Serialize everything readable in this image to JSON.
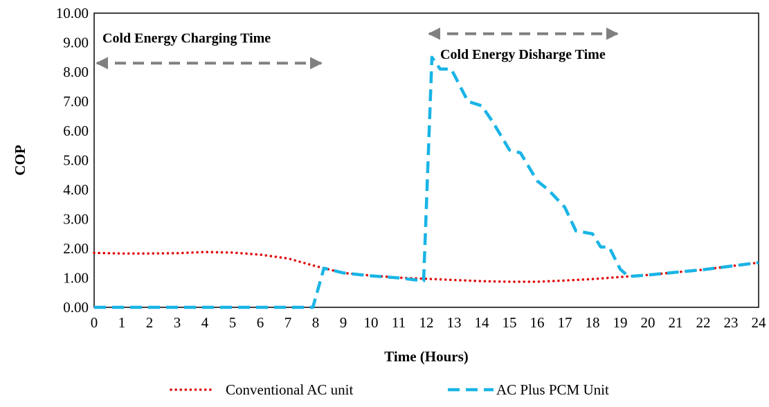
{
  "chart_data": {
    "type": "line",
    "xlabel": "Time (Hours)",
    "ylabel": "COP",
    "xlim": [
      0,
      24
    ],
    "ylim": [
      0,
      10
    ],
    "x_ticks": [
      "0",
      "1",
      "2",
      "3",
      "4",
      "5",
      "6",
      "7",
      "8",
      "9",
      "10",
      "11",
      "12",
      "13",
      "14",
      "15",
      "16",
      "17",
      "18",
      "19",
      "20",
      "21",
      "22",
      "23",
      "24"
    ],
    "y_ticks": [
      "0.00",
      "1.00",
      "2.00",
      "3.00",
      "4.00",
      "5.00",
      "6.00",
      "7.00",
      "8.00",
      "9.00",
      "10.00"
    ],
    "grid": false,
    "legend_position": "bottom",
    "annotations": [
      {
        "text": "Cold Energy Charging Time",
        "arrow_from_x": 0,
        "arrow_to_x": 8.3,
        "arrow_y": 8.3,
        "text_x": 0.3,
        "text_y": 9.0
      },
      {
        "text": "Cold Energy Disharge Time",
        "arrow_from_x": 12,
        "arrow_to_x": 19,
        "arrow_y": 9.3,
        "text_x": 12.5,
        "text_y": 8.45
      }
    ],
    "series": [
      {
        "name": "Conventional AC unit",
        "color": "#e00000",
        "style": "dotted",
        "x": [
          0,
          1,
          2,
          3,
          4,
          5,
          6,
          7,
          8,
          9,
          10,
          11,
          12,
          13,
          14,
          15,
          16,
          17,
          18,
          19,
          20,
          21,
          22,
          23,
          24
        ],
        "y": [
          1.85,
          1.83,
          1.83,
          1.84,
          1.88,
          1.86,
          1.79,
          1.66,
          1.4,
          1.17,
          1.08,
          1.01,
          0.97,
          0.93,
          0.89,
          0.87,
          0.87,
          0.91,
          0.96,
          1.03,
          1.1,
          1.19,
          1.28,
          1.4,
          1.52
        ]
      },
      {
        "name": "AC Plus PCM Unit",
        "color": "#19b4e6",
        "style": "dashed",
        "x": [
          0,
          1,
          2,
          3,
          4,
          5,
          6,
          7,
          7.9,
          8.3,
          9,
          10,
          11,
          11.9,
          12.2,
          12.5,
          12.9,
          13.5,
          14,
          14.4,
          15,
          15.4,
          16,
          16.4,
          17,
          17.4,
          18,
          18.3,
          18.6,
          19,
          19.3,
          20,
          21,
          22,
          23,
          24
        ],
        "y": [
          0,
          0,
          0,
          0,
          0,
          0,
          0,
          0,
          0,
          1.33,
          1.17,
          1.07,
          1.0,
          0.9,
          8.5,
          8.1,
          8.1,
          7.0,
          6.85,
          6.3,
          5.35,
          5.25,
          4.3,
          4.0,
          3.4,
          2.6,
          2.5,
          2.05,
          2.05,
          1.3,
          1.05,
          1.1,
          1.19,
          1.28,
          1.4,
          1.52
        ]
      }
    ]
  }
}
